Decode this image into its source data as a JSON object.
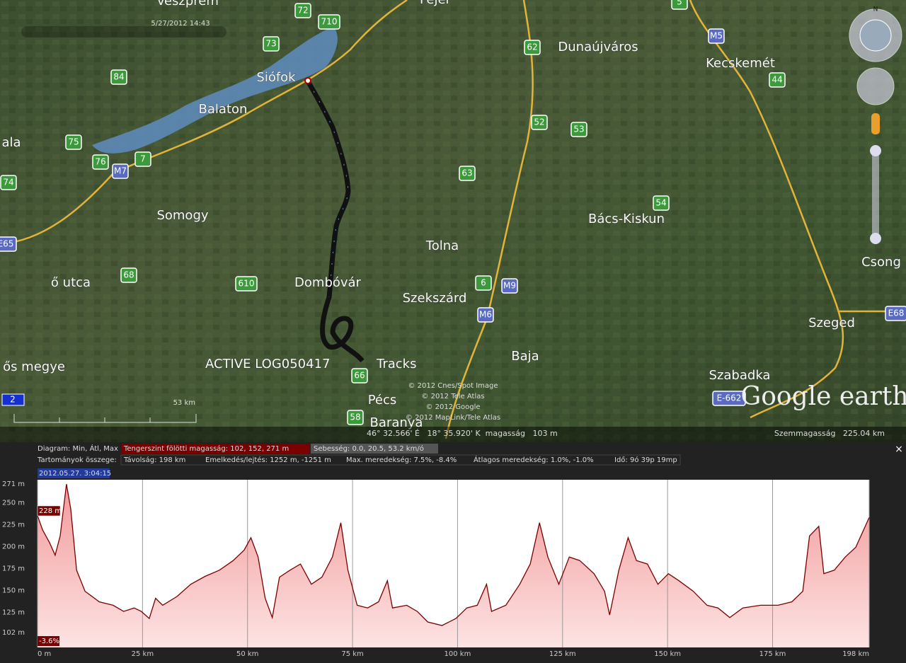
{
  "map": {
    "places": [
      "Veszprém",
      "Fejér",
      "Siófok",
      "Balaton",
      "ala",
      "Somogy",
      "Dombóvár",
      "Tolna",
      "Szekszárd",
      "Dunaújváros",
      "Kecskemét",
      "Bács-Kiskun",
      "Szeged",
      "Szabadka",
      "Baja",
      "Pécs",
      "Baranya",
      "Csong",
      "ős megye",
      "ő utca"
    ],
    "green_shields": [
      "72",
      "710",
      "73",
      "84",
      "75",
      "76",
      "7",
      "74",
      "68",
      "610",
      "66",
      "58",
      "63",
      "62",
      "52",
      "53",
      "54",
      "44",
      "5",
      "6"
    ],
    "blue_shields": [
      "M7",
      "M5",
      "M6",
      "M9",
      "E65",
      "E68",
      "E-662"
    ],
    "timestamp": "5/27/2012 14:43",
    "track_name": "ACTIVE LOG050417",
    "track_folder": "Tracks",
    "copyright": [
      "© 2012 Cnes/Spot Image",
      "© 2012 Tele Atlas",
      "© 2012 Google",
      "© 2012 MapLink/Tele Atlas"
    ],
    "logo": "Google earth",
    "scale": "53 km",
    "layer_badge": "2",
    "compass": "N",
    "status_coords": "46° 32.566' É   18° 35.920' K  magasság   103 m",
    "eye_altitude": "Szemmagasság   225.04 km"
  },
  "panel": {
    "diagram": "Diagram: Min, Átl, Max",
    "elevation": "Tengerszint fölötti magasság: 102, 152, 271 m",
    "speed": "Sebesség: 0.0, 20.5, 53.2 km/ó",
    "totals": "Tartományok összege:",
    "distance": "Távolság: 198 km",
    "climb": "Emelkedés/lejtés: 1252 m, -1251 m",
    "max_slope": "Max. meredekség: 7.5%, -8.4%",
    "avg_slope": "Átlagos meredekség: 1.0%, -1.0%",
    "time": "Idő: 9ó 39p 19mp",
    "close": "×"
  },
  "chart_data": {
    "type": "line",
    "cursor_time": "2012.05.27. 3:04:15",
    "cursor_label": "228 m",
    "slope_label": "-3.6%",
    "color": "#7a0000",
    "fill": "#f7c6c6",
    "x": [
      0,
      1.2,
      2.9,
      4.2,
      5.4,
      6.9,
      7.9,
      9.3,
      11.3,
      14.7,
      18,
      20.5,
      23,
      24.7,
      26.6,
      28.1,
      29.8,
      33.2,
      36.5,
      39.9,
      43.3,
      46.6,
      49.2,
      50.8,
      52.5,
      54.2,
      55.9,
      57.6,
      60.1,
      62.6,
      65.2,
      67.7,
      70.2,
      72.2,
      73.9,
      76.1,
      78.6,
      81.2,
      83.3,
      84.5,
      87.9,
      90.4,
      92.9,
      96.3,
      99.6,
      102.2,
      104.7,
      106.9,
      108.1,
      111.5,
      114.8,
      117.3,
      119.5,
      121.5,
      124.1,
      126.6,
      129.1,
      132.5,
      135,
      136.2,
      138.4,
      140.6,
      142.6,
      145.2,
      147.7,
      150.2,
      152.7,
      156.1,
      159.4,
      162,
      164.8,
      167.9,
      172.1,
      176.3,
      179.6,
      182.2,
      183.8,
      186,
      187.2,
      189.7,
      192.3,
      194.8,
      198
    ],
    "values": [
      235,
      219,
      204,
      190,
      212,
      271,
      243,
      173,
      149,
      137,
      133,
      126,
      130,
      126,
      118,
      141,
      133,
      143,
      157,
      166,
      173,
      184,
      196,
      210,
      188,
      141,
      119,
      165,
      173,
      180,
      157,
      165,
      188,
      227,
      173,
      133,
      130,
      137,
      161,
      130,
      133,
      126,
      114,
      110,
      118,
      130,
      133,
      157,
      126,
      133,
      157,
      180,
      227,
      188,
      157,
      188,
      184,
      169,
      149,
      122,
      173,
      210,
      184,
      180,
      157,
      169,
      161,
      149,
      133,
      130,
      119,
      130,
      133,
      133,
      137,
      149,
      212,
      223,
      169,
      173,
      188,
      199,
      233
    ],
    "xlim": [
      0,
      198
    ],
    "ylim": [
      85,
      276
    ],
    "xticks": [
      {
        "value": 0,
        "label": "0 m"
      },
      {
        "value": 25,
        "label": "25 km"
      },
      {
        "value": 50,
        "label": "50 km"
      },
      {
        "value": 75,
        "label": "75 km"
      },
      {
        "value": 100,
        "label": "100 km"
      },
      {
        "value": 125,
        "label": "125 km"
      },
      {
        "value": 150,
        "label": "150 km"
      },
      {
        "value": 175,
        "label": "175 km"
      },
      {
        "value": 198,
        "label": "198 km"
      }
    ],
    "yticks": [
      {
        "value": 271,
        "label": "271 m"
      },
      {
        "value": 250,
        "label": "250 m"
      },
      {
        "value": 225,
        "label": "225 m"
      },
      {
        "value": 200,
        "label": "200 m"
      },
      {
        "value": 175,
        "label": "175 m"
      },
      {
        "value": 150,
        "label": "150 m"
      },
      {
        "value": 125,
        "label": "125 m"
      },
      {
        "value": 102,
        "label": "102 m"
      }
    ],
    "grid": true
  }
}
